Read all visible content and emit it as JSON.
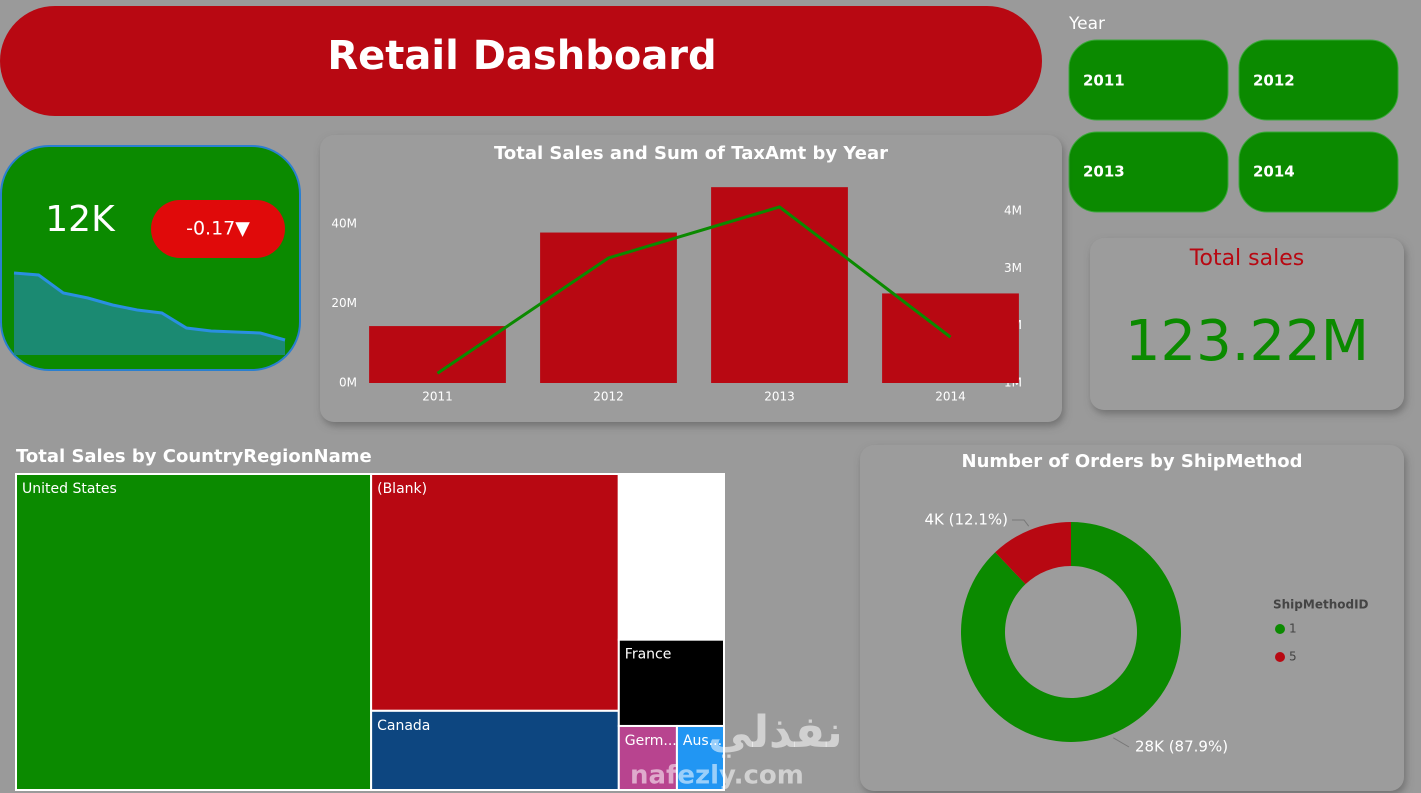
{
  "header": {
    "title": "Retail Dashboard"
  },
  "slicer": {
    "title": "Year",
    "options": [
      "2011",
      "2012",
      "2013",
      "2014"
    ]
  },
  "kpi": {
    "value": "12K",
    "change": "-0.17▼"
  },
  "card": {
    "title": "Total sales",
    "value": "123.22M"
  },
  "watermark": {
    "text": "نفذلي",
    "url": "nafezly.com"
  },
  "chart_data": [
    {
      "type": "area",
      "color": "#2a8fe0",
      "values": [
        82,
        80,
        62,
        57,
        50,
        45,
        42,
        27,
        24,
        23,
        22,
        15
      ],
      "ylim": [
        0,
        100
      ]
    },
    {
      "type": "combo",
      "title": "Total Sales and Sum of TaxAmt by Year",
      "categories": [
        "2011",
        "2012",
        "2013",
        "2014"
      ],
      "series": [
        {
          "type": "bar",
          "color": "#b80812",
          "values": [
            14300000,
            37800000,
            49200000,
            22500000
          ]
        },
        {
          "type": "line",
          "axis": "y2",
          "color": "#0b8a00",
          "values": [
            1170000,
            3180000,
            4070000,
            1800000
          ]
        }
      ],
      "ylim": [
        0,
        51000000
      ],
      "yticks": [
        {
          "value": 0,
          "label": "0M"
        },
        {
          "value": 20000000,
          "label": "20M"
        },
        {
          "value": 40000000,
          "label": "40M"
        }
      ],
      "y2lim": [
        1000000,
        4540000
      ],
      "y2ticks": [
        {
          "value": 1000000,
          "label": "1M"
        },
        {
          "value": 2000000,
          "label": "2M"
        },
        {
          "value": 3000000,
          "label": "3M"
        },
        {
          "value": 4000000,
          "label": "4M"
        }
      ],
      "grid": false
    },
    {
      "type": "treemap",
      "title": "Total Sales by CountryRegionName",
      "categories": [
        "United States",
        "(Blank)",
        "Canada",
        null,
        "France",
        "Germ...",
        "Aus..."
      ],
      "values": [
        61800000,
        32300000,
        10800000,
        9600000,
        5000000,
        2050000,
        1660000
      ],
      "colors": [
        "#0b8a00",
        "#b80812",
        "#0d4680",
        "#ffffff",
        "#000000",
        "#b8448f",
        "#2196f3"
      ]
    },
    {
      "type": "donut",
      "title": "Number of Orders by ShipMethod",
      "categories": [
        "1",
        "5"
      ],
      "values": [
        27658,
        3807
      ],
      "value_labels": [
        "28K (87.9%)",
        "4K (12.1%)"
      ],
      "colors": [
        "#0b8a00",
        "#b80812"
      ],
      "legend_title": "ShipMethodID",
      "legend": "right"
    }
  ]
}
